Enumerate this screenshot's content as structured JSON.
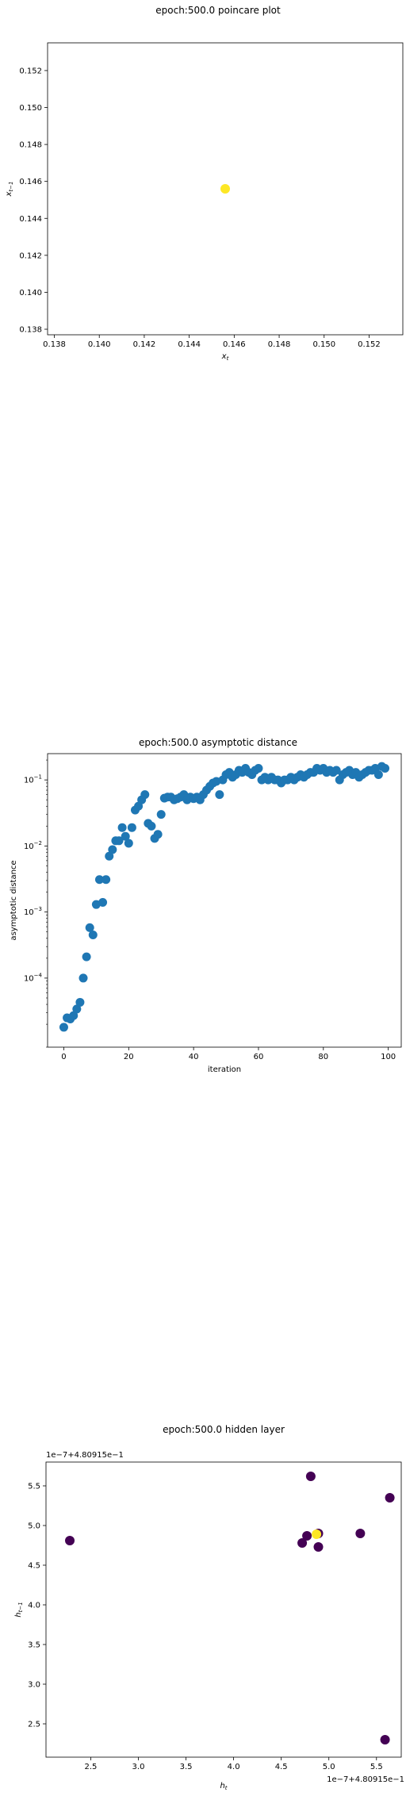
{
  "chart_data": [
    {
      "type": "scatter",
      "title": "epoch:500.0 poincare plot",
      "xlabel": "x_t",
      "ylabel": "x_{t-1}",
      "xlim": [
        0.1377,
        0.1535
      ],
      "ylim": [
        0.1377,
        0.1535
      ],
      "xticks": [
        "0.138",
        "0.140",
        "0.142",
        "0.144",
        "0.146",
        "0.148",
        "0.150",
        "0.152"
      ],
      "yticks": [
        "0.138",
        "0.140",
        "0.142",
        "0.144",
        "0.146",
        "0.148",
        "0.150",
        "0.152"
      ],
      "points": [
        {
          "x": 0.1456,
          "y": 0.1456,
          "color": "#fde725"
        }
      ],
      "grid": false
    },
    {
      "type": "scatter",
      "title": "epoch:500.0 asymptotic distance",
      "xlabel": "iteration",
      "ylabel": "asymptotic distance",
      "xscale": "linear",
      "yscale": "log",
      "xlim": [
        -5,
        104
      ],
      "ylim": [
        9e-06,
        0.25
      ],
      "xticks": [
        "0",
        "20",
        "40",
        "60",
        "80",
        "100"
      ],
      "yticks": [
        "10^-4",
        "10^-3",
        "10^-2",
        "10^-1"
      ],
      "color": "#1f77b4",
      "x": [
        0,
        1,
        2,
        3,
        4,
        5,
        6,
        7,
        8,
        9,
        10,
        11,
        12,
        13,
        14,
        15,
        16,
        17,
        18,
        19,
        20,
        21,
        22,
        23,
        24,
        25,
        26,
        27,
        28,
        29,
        30,
        31,
        32,
        33,
        34,
        35,
        36,
        37,
        38,
        39,
        40,
        41,
        42,
        43,
        44,
        45,
        46,
        47,
        48,
        49,
        50,
        51,
        52,
        53,
        54,
        55,
        56,
        57,
        58,
        59,
        60,
        61,
        62,
        63,
        64,
        65,
        66,
        67,
        68,
        69,
        70,
        71,
        72,
        73,
        74,
        75,
        76,
        77,
        78,
        79,
        80,
        81,
        82,
        83,
        84,
        85,
        86,
        87,
        88,
        89,
        90,
        91,
        92,
        93,
        94,
        95,
        96,
        97,
        98,
        99
      ],
      "y": [
        1.8e-05,
        2.5e-05,
        2.4e-05,
        2.7e-05,
        3.4e-05,
        4.3e-05,
        0.0001,
        0.00021,
        0.00058,
        0.00045,
        0.0013,
        0.0031,
        0.0014,
        0.0031,
        0.007,
        0.0088,
        0.012,
        0.012,
        0.019,
        0.014,
        0.011,
        0.019,
        0.035,
        0.04,
        0.05,
        0.06,
        0.022,
        0.02,
        0.013,
        0.015,
        0.03,
        0.053,
        0.055,
        0.055,
        0.05,
        0.052,
        0.055,
        0.06,
        0.05,
        0.055,
        0.052,
        0.055,
        0.05,
        0.06,
        0.07,
        0.08,
        0.09,
        0.095,
        0.06,
        0.1,
        0.12,
        0.13,
        0.11,
        0.12,
        0.14,
        0.13,
        0.15,
        0.13,
        0.12,
        0.14,
        0.15,
        0.1,
        0.11,
        0.1,
        0.11,
        0.1,
        0.1,
        0.09,
        0.1,
        0.1,
        0.11,
        0.1,
        0.11,
        0.12,
        0.11,
        0.12,
        0.13,
        0.13,
        0.15,
        0.14,
        0.15,
        0.13,
        0.14,
        0.13,
        0.14,
        0.1,
        0.12,
        0.13,
        0.14,
        0.12,
        0.13,
        0.11,
        0.12,
        0.13,
        0.14,
        0.14,
        0.15,
        0.12,
        0.16,
        0.15
      ],
      "grid": false
    },
    {
      "type": "scatter",
      "title": "epoch:500.0 hidden layer",
      "xlabel": "h_t",
      "ylabel": "h_{t-1}",
      "offset_text_x": "1e−7+4.80915e−1",
      "offset_text_y": "1e−7+4.80915e−1",
      "xlim": [
        2.03,
        5.76
      ],
      "ylim": [
        2.08,
        5.8
      ],
      "xticks": [
        "2.5",
        "3.0",
        "3.5",
        "4.0",
        "4.5",
        "5.0",
        "5.5"
      ],
      "yticks": [
        "2.5",
        "3.0",
        "3.5",
        "4.0",
        "4.5",
        "5.0",
        "5.5"
      ],
      "points": [
        {
          "x": 2.28,
          "y": 4.81,
          "color": "#440154"
        },
        {
          "x": 4.81,
          "y": 5.62,
          "color": "#440154"
        },
        {
          "x": 5.64,
          "y": 5.35,
          "color": "#440154"
        },
        {
          "x": 4.72,
          "y": 4.78,
          "color": "#440154"
        },
        {
          "x": 4.77,
          "y": 4.87,
          "color": "#440154"
        },
        {
          "x": 4.89,
          "y": 4.73,
          "color": "#440154"
        },
        {
          "x": 4.89,
          "y": 4.9,
          "color": "#440154"
        },
        {
          "x": 5.33,
          "y": 4.9,
          "color": "#440154"
        },
        {
          "x": 5.59,
          "y": 2.3,
          "color": "#440154"
        },
        {
          "x": 4.87,
          "y": 4.89,
          "color": "#fde725"
        }
      ],
      "grid": false
    }
  ]
}
